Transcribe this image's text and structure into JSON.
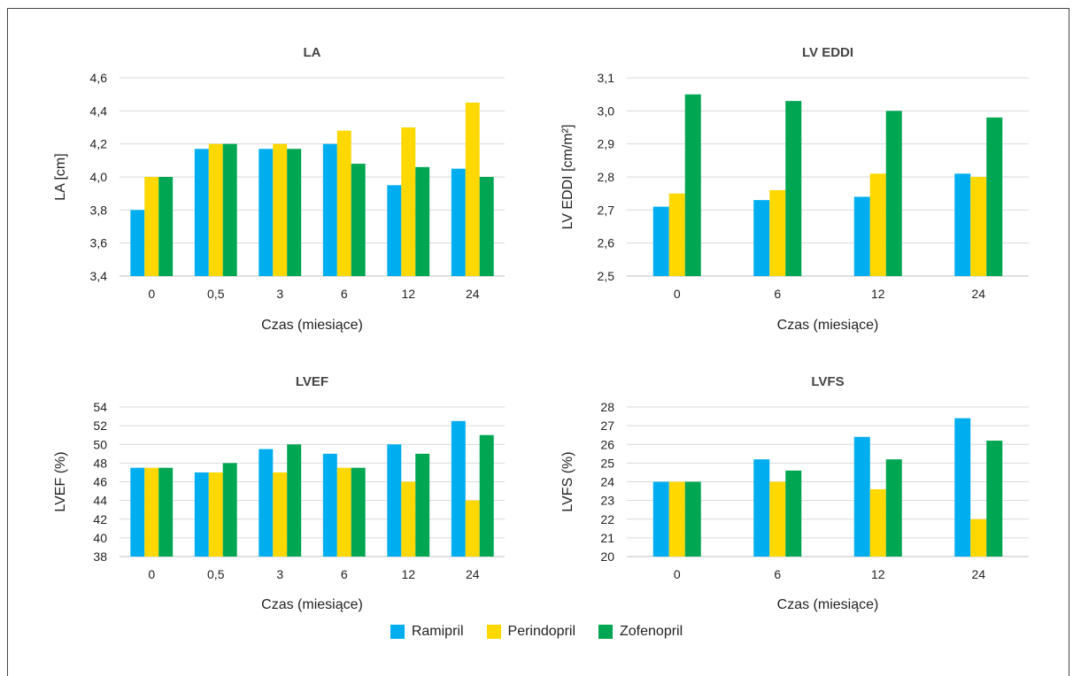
{
  "colors": {
    "Ramipril": "#00aeef",
    "Perindopril": "#ffd800",
    "Zofenopril": "#00a651",
    "grid": "#d9d9d9",
    "axis": "#bfbfbf"
  },
  "legend": {
    "items": [
      {
        "label": "Ramipril",
        "color": "#00aeef"
      },
      {
        "label": "Perindopril",
        "color": "#ffd800"
      },
      {
        "label": "Zofenopril",
        "color": "#00a651"
      }
    ]
  },
  "chart_data": [
    {
      "type": "bar",
      "title": "LA",
      "xlabel": "Czas (miesiące)",
      "ylabel": "LA [cm]",
      "ylim": [
        3.4,
        4.6
      ],
      "yticks": [
        "3,4",
        "3,6",
        "3,8",
        "4,0",
        "4,2",
        "4,4",
        "4,6"
      ],
      "ytick_values": [
        3.4,
        3.6,
        3.8,
        4.0,
        4.2,
        4.4,
        4.6
      ],
      "categories": [
        "0",
        "0,5",
        "3",
        "6",
        "12",
        "24"
      ],
      "grid": true,
      "series": [
        {
          "name": "Ramipril",
          "values": [
            3.8,
            4.17,
            4.17,
            4.2,
            3.95,
            4.05
          ]
        },
        {
          "name": "Perindopril",
          "values": [
            4.0,
            4.2,
            4.2,
            4.28,
            4.3,
            4.45
          ]
        },
        {
          "name": "Zofenopril",
          "values": [
            4.0,
            4.2,
            4.17,
            4.08,
            4.06,
            4.0
          ]
        }
      ]
    },
    {
      "type": "bar",
      "title": "LV EDDI",
      "xlabel": "Czas (miesiące)",
      "ylabel": "LV EDDI [cm/m²]",
      "ylim": [
        2.5,
        3.1
      ],
      "yticks": [
        "2,5",
        "2,6",
        "2,7",
        "2,8",
        "2,9",
        "3,0",
        "3,1"
      ],
      "ytick_values": [
        2.5,
        2.6,
        2.7,
        2.8,
        2.9,
        3.0,
        3.1
      ],
      "categories": [
        "0",
        "6",
        "12",
        "24"
      ],
      "grid": true,
      "series": [
        {
          "name": "Ramipril",
          "values": [
            2.71,
            2.73,
            2.74,
            2.81
          ]
        },
        {
          "name": "Perindopril",
          "values": [
            2.75,
            2.76,
            2.81,
            2.8
          ]
        },
        {
          "name": "Zofenopril",
          "values": [
            3.05,
            3.03,
            3.0,
            2.98
          ]
        }
      ]
    },
    {
      "type": "bar",
      "title": "LVEF",
      "xlabel": "Czas (miesiące)",
      "ylabel": "LVEF (%)",
      "ylim": [
        38,
        54
      ],
      "yticks": [
        "38",
        "40",
        "42",
        "44",
        "46",
        "48",
        "50",
        "52",
        "54"
      ],
      "ytick_values": [
        38,
        40,
        42,
        44,
        46,
        48,
        50,
        52,
        54
      ],
      "categories": [
        "0",
        "0,5",
        "3",
        "6",
        "12",
        "24"
      ],
      "grid": true,
      "series": [
        {
          "name": "Ramipril",
          "values": [
            47.5,
            47.0,
            49.5,
            49.0,
            50.0,
            52.5
          ]
        },
        {
          "name": "Perindopril",
          "values": [
            47.5,
            47.0,
            47.0,
            47.5,
            46.0,
            44.0
          ]
        },
        {
          "name": "Zofenopril",
          "values": [
            47.5,
            48.0,
            50.0,
            47.5,
            49.0,
            51.0
          ]
        }
      ]
    },
    {
      "type": "bar",
      "title": "LVFS",
      "xlabel": "Czas (miesiące)",
      "ylabel": "LVFS (%)",
      "ylim": [
        20,
        28
      ],
      "yticks": [
        "20",
        "21",
        "22",
        "23",
        "24",
        "25",
        "26",
        "27",
        "28"
      ],
      "ytick_values": [
        20,
        21,
        22,
        23,
        24,
        25,
        26,
        27,
        28
      ],
      "categories": [
        "0",
        "6",
        "12",
        "24"
      ],
      "grid": true,
      "series": [
        {
          "name": "Ramipril",
          "values": [
            24.0,
            25.2,
            26.4,
            27.4
          ]
        },
        {
          "name": "Perindopril",
          "values": [
            24.0,
            24.0,
            23.6,
            22.0
          ]
        },
        {
          "name": "Zofenopril",
          "values": [
            24.0,
            24.6,
            25.2,
            26.2
          ]
        }
      ]
    }
  ]
}
